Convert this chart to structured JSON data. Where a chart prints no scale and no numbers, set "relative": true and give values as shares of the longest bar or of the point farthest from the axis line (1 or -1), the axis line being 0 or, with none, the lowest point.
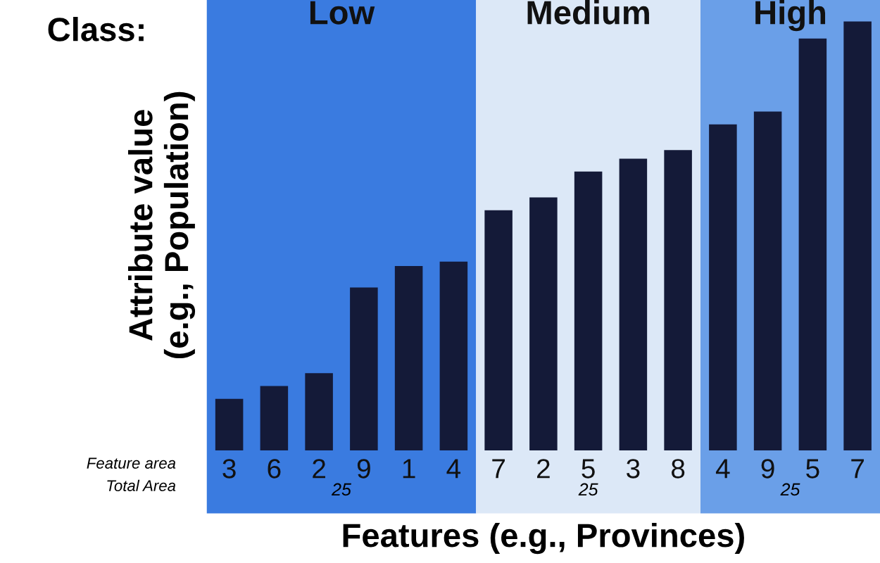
{
  "chart_data": {
    "type": "bar",
    "relative": true,
    "ylabel": "Attribute value\n(e.g., Population)",
    "xlabel": "Features (e.g., Provinces)",
    "categories": [
      "3",
      "6",
      "2",
      "9",
      "1",
      "4",
      "7",
      "2",
      "5",
      "3",
      "8",
      "4",
      "9",
      "5",
      "7"
    ],
    "values": [
      0.12,
      0.15,
      0.18,
      0.38,
      0.43,
      0.44,
      0.56,
      0.59,
      0.65,
      0.68,
      0.7,
      0.76,
      0.79,
      0.96,
      1.0
    ],
    "color": "#141a38",
    "bands": [
      {
        "axis": "x",
        "from": "3",
        "to": "4",
        "label": "Low",
        "color": "#3a7be0"
      },
      {
        "axis": "x",
        "from": "7",
        "to": "8",
        "label": "Medium",
        "color": "#dce8f7"
      }
    ],
    "annotations": [
      "Class:",
      "Feature area",
      "Total Area",
      "25",
      "25",
      "25",
      "High"
    ],
    "grid": false,
    "legend": false
  }
}
